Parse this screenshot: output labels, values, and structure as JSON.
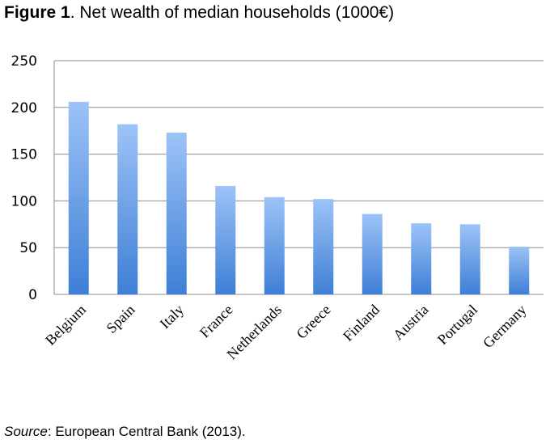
{
  "figure": {
    "label": "Figure 1",
    "title": ". Net wealth of median households (1000€)"
  },
  "source": {
    "label": "Source",
    "text": ": European Central Bank (2013)."
  },
  "chart_data": {
    "type": "bar",
    "title": "Net wealth of median households (1000€)",
    "xlabel": "",
    "ylabel": "",
    "categories": [
      "Belgium",
      "Spain",
      "Italy",
      "France",
      "Netherlands",
      "Greece",
      "Finland",
      "Austria",
      "Portugal",
      "Germany"
    ],
    "values": [
      206,
      182,
      173,
      116,
      104,
      102,
      86,
      76,
      75,
      51
    ],
    "ylim": [
      0,
      250
    ],
    "yticks": [
      "0",
      "50",
      "100",
      "150",
      "200",
      "250"
    ],
    "grid": true,
    "legend": "none",
    "colors": {
      "bar_top": "#9DC3F7",
      "bar_bottom": "#3E7FD6",
      "grid": "#8C8C8C"
    }
  }
}
